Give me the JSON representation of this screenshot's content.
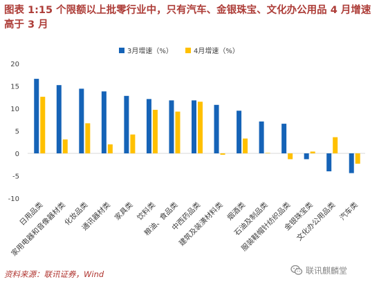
{
  "title": "图表 1:15 个限额以上批零行业中，只有汽车、金银珠宝、文化办公用品 4 月增速高于 3 月",
  "source": "资料来源：联讯证券，Wind",
  "watermark": "联讯麒麟堂",
  "watermark_icon": "wechat-icon",
  "colors": {
    "series1": "#1563b7",
    "series2": "#ffc000",
    "title": "#ad3d38"
  },
  "chart_data": {
    "type": "bar",
    "categories": [
      "日用品类",
      "家用电器和音像器材类",
      "化妆品类",
      "通讯器材类",
      "家具类",
      "饮料类",
      "粮油、食品类",
      "中西药品类",
      "建筑及装潢材料类",
      "烟酒类",
      "石油及制品类",
      "服装鞋帽针纺织品类",
      "金银珠宝类",
      "文化办公用品类",
      "汽车类"
    ],
    "series": [
      {
        "name": "3月增速（%）",
        "values": [
          16.6,
          15.2,
          14.4,
          13.8,
          12.8,
          12.1,
          11.8,
          11.8,
          10.8,
          9.5,
          7.1,
          6.6,
          -1.3,
          -4.0,
          -4.4
        ]
      },
      {
        "name": "4月增速（%）",
        "values": [
          12.6,
          3.1,
          6.7,
          2.0,
          4.2,
          9.7,
          9.3,
          11.5,
          -0.3,
          3.3,
          0.1,
          -1.3,
          0.4,
          3.6,
          -2.3
        ]
      }
    ],
    "ylim": [
      -10,
      20
    ],
    "yticks": [
      -10,
      -5,
      0,
      5,
      10,
      15,
      20
    ],
    "ytick_labels": [
      "-10",
      "-5",
      "0",
      "5",
      "10",
      "15",
      "20"
    ],
    "legend_position": "top-center",
    "grid": false
  }
}
